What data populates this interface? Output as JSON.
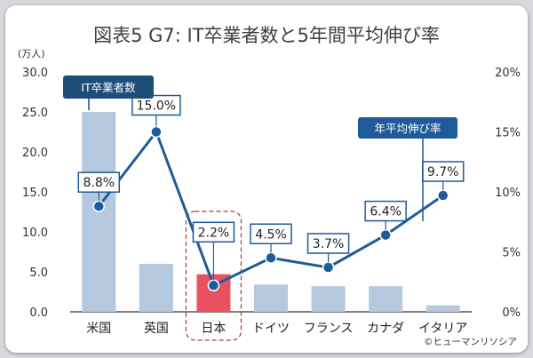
{
  "chart_data": {
    "type": "bar",
    "title": "図表5 G7: IT卒業者数と5年間平均伸び率",
    "categories": [
      "米国",
      "英国",
      "日本",
      "ドイツ",
      "フランス",
      "カナダ",
      "イタリア"
    ],
    "y_unit": "(万人)",
    "series": [
      {
        "name": "IT卒業者数",
        "type": "bar",
        "axis": "left",
        "values": [
          25.0,
          6.0,
          4.7,
          3.4,
          3.2,
          3.2,
          0.8
        ]
      },
      {
        "name": "年平均伸び率",
        "type": "line",
        "axis": "right",
        "values": [
          8.8,
          15.0,
          2.2,
          4.5,
          3.7,
          6.4,
          9.7
        ],
        "labels": [
          "8.8%",
          "15.0%",
          "2.2%",
          "4.5%",
          "3.7%",
          "6.4%",
          "9.7%"
        ]
      }
    ],
    "ylim": [
      0,
      30
    ],
    "y_ticks": [
      "0.0",
      "5.0",
      "10.0",
      "15.0",
      "20.0",
      "25.0",
      "30.0"
    ],
    "y2lim": [
      0,
      20
    ],
    "y2_ticks": [
      "0%",
      "5%",
      "10%",
      "15%",
      "20%"
    ],
    "highlight_category": "日本",
    "grid": false,
    "credit": "©ヒューマンリソシア",
    "colors": {
      "bar": "#b6c8de",
      "highlight_bar": "#e8525e",
      "line": "#1f5b9a",
      "label_tag": "#1f4d7a",
      "highlight_border": "#a04040"
    }
  }
}
